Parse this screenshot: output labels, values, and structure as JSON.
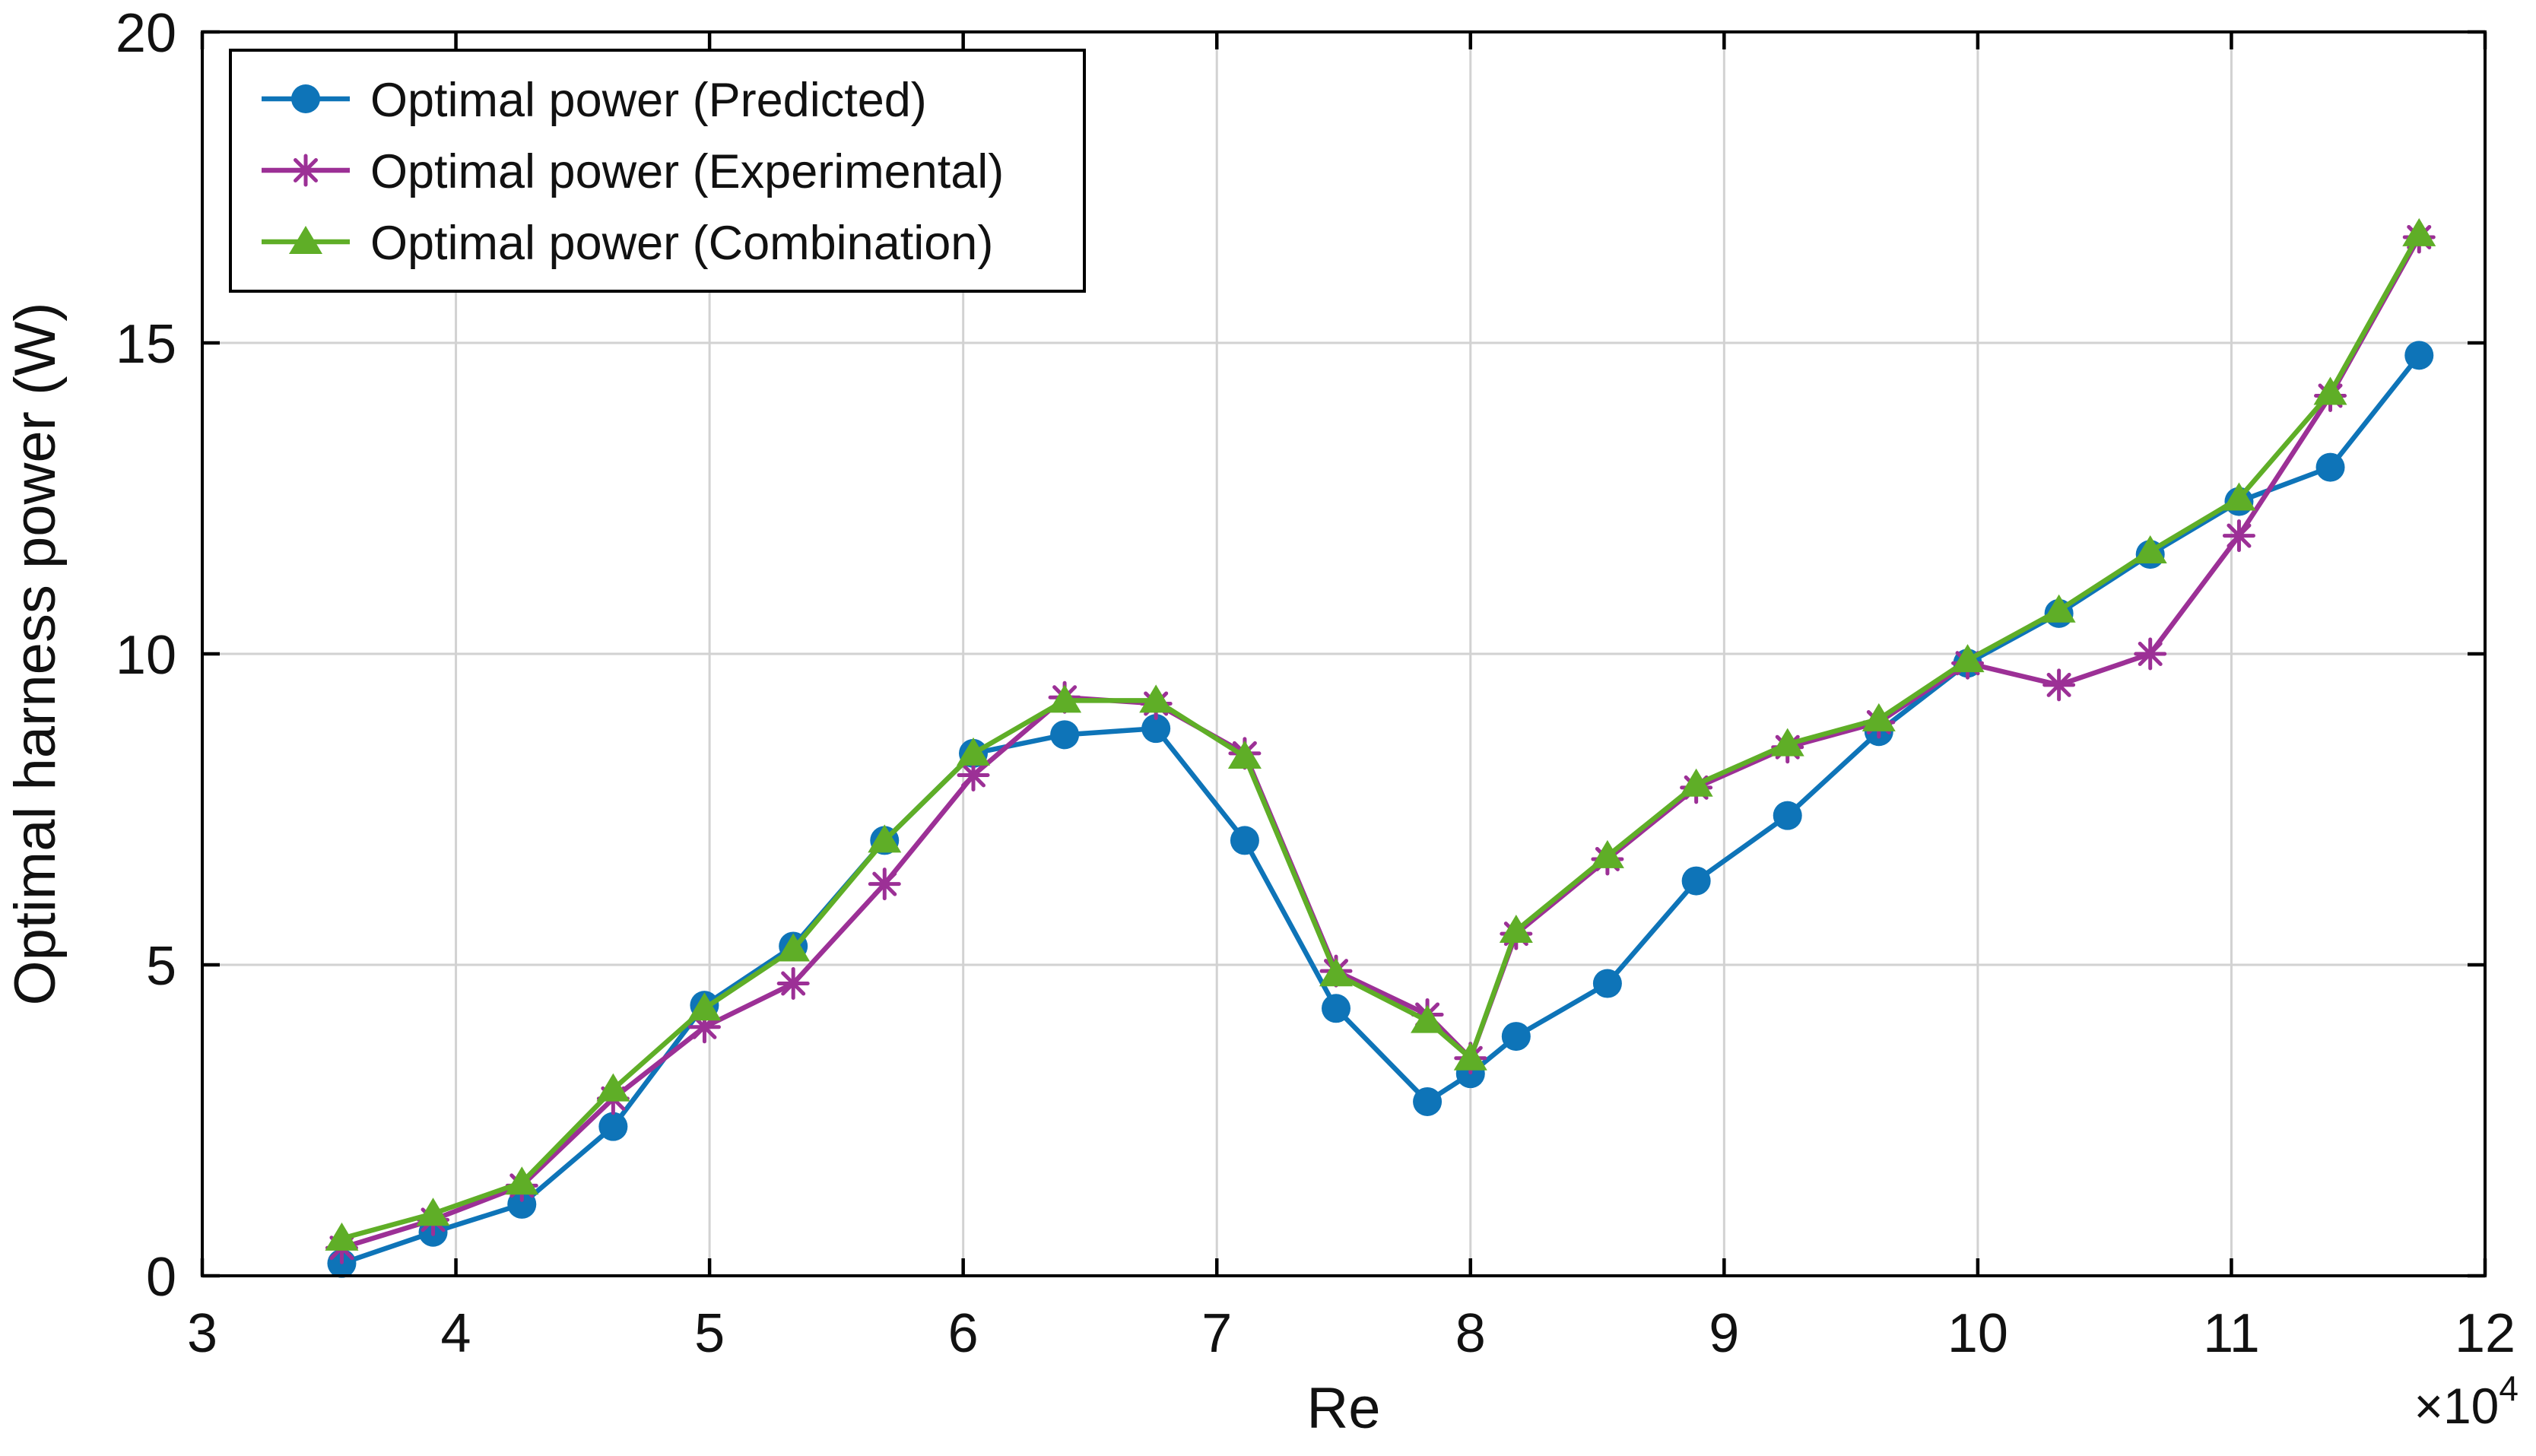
{
  "figure": {
    "background": "#ffffff",
    "frame_color": "#000000",
    "grid_color": "#d2d2d2"
  },
  "axes": {
    "xlabel": "Re",
    "ylabel": "Optimal harness power (W)",
    "x_multiplier_base": "×10",
    "x_multiplier_exponent": "4",
    "xlim": [
      3,
      12
    ],
    "ylim": [
      0,
      20
    ],
    "x_ticks": [
      3,
      4,
      5,
      6,
      7,
      8,
      9,
      10,
      11,
      12
    ],
    "y_ticks": [
      0,
      5,
      10,
      15,
      20
    ],
    "grid": true
  },
  "legend": {
    "position": "top-left",
    "background": "#ffffff",
    "border_color": "#000000",
    "entries": [
      {
        "label": "Optimal power (Predicted)",
        "marker": "circle",
        "color": "#0e74b8"
      },
      {
        "label": "Optimal power (Experimental)",
        "marker": "asterisk",
        "color": "#9c3096"
      },
      {
        "label": "Optimal power (Combination)",
        "marker": "triangle",
        "color": "#5fae27"
      }
    ]
  },
  "chart_data": {
    "type": "line",
    "title": "",
    "xlabel": "Re",
    "ylabel": "Optimal harness power (W)",
    "x_unit_multiplier": 10000,
    "xlim": [
      3,
      12
    ],
    "ylim": [
      0,
      20
    ],
    "grid": true,
    "legend_position": "top-left",
    "x": [
      3.55,
      3.91,
      4.26,
      4.62,
      4.98,
      5.33,
      5.69,
      6.04,
      6.4,
      6.76,
      7.11,
      7.47,
      7.83,
      8.0,
      8.18,
      8.54,
      8.89,
      9.25,
      9.61,
      9.96,
      10.32,
      10.68,
      11.03,
      11.39,
      11.74
    ],
    "series": [
      {
        "name": "Optimal power (Predicted)",
        "color": "#0e74b8",
        "marker": "circle",
        "values": [
          0.2,
          0.7,
          1.15,
          2.4,
          4.35,
          5.3,
          7.0,
          8.4,
          8.7,
          8.8,
          7.0,
          4.3,
          2.8,
          3.25,
          3.85,
          4.7,
          6.35,
          7.4,
          8.75,
          9.85,
          10.65,
          11.6,
          12.45,
          13.0,
          14.8
        ]
      },
      {
        "name": "Optimal power (Experimental)",
        "color": "#9c3096",
        "marker": "asterisk",
        "values": [
          0.45,
          0.9,
          1.45,
          2.85,
          4.0,
          4.7,
          6.3,
          8.05,
          9.3,
          9.2,
          8.4,
          4.9,
          4.2,
          3.5,
          5.5,
          6.7,
          7.85,
          8.5,
          8.9,
          9.85,
          9.5,
          10.0,
          11.9,
          14.15,
          16.7
        ]
      },
      {
        "name": "Optimal power (Combination)",
        "color": "#5fae27",
        "marker": "triangle",
        "values": [
          0.6,
          1.0,
          1.5,
          3.0,
          4.3,
          5.25,
          7.0,
          8.4,
          9.25,
          9.25,
          8.35,
          4.85,
          4.1,
          3.5,
          5.55,
          6.75,
          7.9,
          8.55,
          8.95,
          9.9,
          10.7,
          11.65,
          12.5,
          14.2,
          16.75
        ]
      }
    ]
  }
}
